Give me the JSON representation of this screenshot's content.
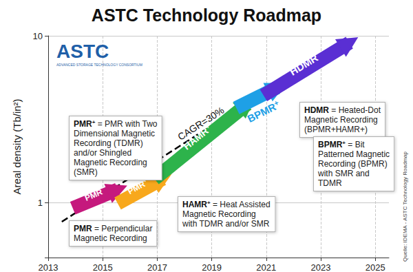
{
  "chart_data": {
    "type": "lines",
    "title": "ASTC Technology Roadmap",
    "y_label": "Areal density (Tb/in²)",
    "xlim": [
      2013,
      2025.5
    ],
    "xticks": [
      2013,
      2015,
      2017,
      2019,
      2021,
      2023,
      2025
    ],
    "ylim": [
      0.47,
      10
    ],
    "yticks": [
      1,
      10
    ],
    "log": "y",
    "grid": true,
    "series": [
      {
        "name": "PMR",
        "color": "#c5197d",
        "marker": "arrow",
        "x": [
          2013.9,
          2015.55
        ],
        "values": [
          0.93,
          1.2
        ]
      },
      {
        "name": "PMR+",
        "color": "#f8a81c",
        "marker": "arrow",
        "x": [
          2015.55,
          2017.2
        ],
        "values": [
          0.99,
          1.39
        ]
      },
      {
        "name": "HAMR+",
        "color": "#2db34b",
        "marker": "arrow",
        "x": [
          2016.9,
          2020.3
        ],
        "values": [
          1.39,
          3.9
        ]
      },
      {
        "name": "BPMR+",
        "color": "#1ea0e6",
        "marker": "arrow",
        "x": [
          2019.9,
          2021.4
        ],
        "values": [
          3.7,
          4.9
        ]
      },
      {
        "name": "HDMR",
        "color": "#5a2fd3",
        "marker": "arrow",
        "x": [
          2020.9,
          2024.05
        ],
        "values": [
          4.4,
          9.1
        ]
      }
    ],
    "trend": {
      "label": "CAGR=30%",
      "color": "#000000",
      "line_style": "dashed",
      "x": [
        2013.5,
        2024.0
      ],
      "values": [
        0.77,
        9.7
      ]
    },
    "annotations": [
      {
        "term": "PMR+",
        "text": "= PMR with Two\nDimensional Magnetic\nRecording (TDMR)\nand/or Shingled\nMagnetic Recording\n(SMR)"
      },
      {
        "term": "PMR",
        "text": "= Perpendicular\nMagnetic Recording"
      },
      {
        "term": "HAMR+",
        "text": "= Heat Assisted\nMagnetic Recording\nwith TDMR and/or SMR"
      },
      {
        "term": "HDMR",
        "text": "= Heated-Dot\nMagnetic Recording\n(BPMR+HAMR+)"
      },
      {
        "term": "BPMR+",
        "text": "= Bit\nPatterned Magnetic\nRecording (BPMR)\nwith SMR and\nTDMR"
      }
    ],
    "logo": {
      "text": "ASTC",
      "subtitle": "ADVANCED STORAGE TECHNOLOGY CONSORTIUM"
    },
    "source": "Quelle: IDEMA - ASTC Technology Roadmap"
  }
}
